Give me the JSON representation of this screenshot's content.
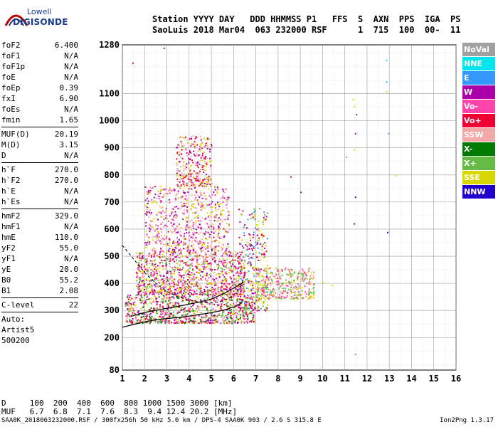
{
  "logo": {
    "line1": "Lowell",
    "line2": "DIGISONDE"
  },
  "header": {
    "line1": "Station YYYY DAY   DDD HHMMSS P1   FFS  S  AXN  PPS  IGA  PS",
    "line2": "SaoLuis 2018 Mar04  063 232000 RSF      1  715  100  00-  11"
  },
  "params": {
    "group1": [
      {
        "label": "foF2",
        "value": "6.400"
      },
      {
        "label": "foF1",
        "value": "N/A"
      },
      {
        "label": "foF1p",
        "value": "N/A"
      },
      {
        "label": "foE",
        "value": "N/A"
      },
      {
        "label": "foEp",
        "value": "0.39"
      },
      {
        "label": "fxI",
        "value": "6.90"
      },
      {
        "label": "foEs",
        "value": "N/A"
      },
      {
        "label": "fmin",
        "value": "1.65"
      }
    ],
    "group2": [
      {
        "label": "MUF(D)",
        "value": "20.19"
      },
      {
        "label": "M(D)",
        "value": "3.15"
      },
      {
        "label": "D",
        "value": "N/A"
      }
    ],
    "group3": [
      {
        "label": "h`F",
        "value": "270.0"
      },
      {
        "label": "h`F2",
        "value": "270.0"
      },
      {
        "label": "h`E",
        "value": "N/A"
      },
      {
        "label": "h`Es",
        "value": "N/A"
      }
    ],
    "group4": [
      {
        "label": "hmF2",
        "value": "329.0"
      },
      {
        "label": "hmF1",
        "value": "N/A"
      },
      {
        "label": "hmE",
        "value": "110.0"
      },
      {
        "label": "yF2",
        "value": "55.0"
      },
      {
        "label": "yF1",
        "value": "N/A"
      },
      {
        "label": "yE",
        "value": "20.0"
      },
      {
        "label": "B0",
        "value": "55.2"
      },
      {
        "label": "B1",
        "value": "2.08"
      }
    ],
    "group5": [
      {
        "label": "C-level",
        "value": "22"
      }
    ],
    "notes": [
      "Auto:",
      "Artist5",
      "500200"
    ]
  },
  "legend": [
    {
      "label": "NoVal",
      "color": "#a0a0a0"
    },
    {
      "label": "NNE",
      "color": "#00e5ee"
    },
    {
      "label": "E",
      "color": "#3399ff"
    },
    {
      "label": "W",
      "color": "#aa00aa"
    },
    {
      "label": "Vo-",
      "color": "#ff44aa"
    },
    {
      "label": "Vo+",
      "color": "#ee0033"
    },
    {
      "label": "SSW",
      "color": "#f4a8a8"
    },
    {
      "label": "X-",
      "color": "#007a00"
    },
    {
      "label": "X+",
      "color": "#66bb44"
    },
    {
      "label": "SSE",
      "color": "#d8d800"
    },
    {
      "label": "NNW",
      "color": "#2200cc"
    }
  ],
  "footer": {
    "d_row": "D     100  200  400  600  800 1000 1500 3000 [km]",
    "muf_row": "MUF   6.7  6.8  7.1  7.6  8.3  9.4 12.4 20.2 [MHz]",
    "filename": "SAA0K_2018063232000.RSF / 300fx256h 50 kHz 5.0 km / DPS-4 SAA0K 903 / 2.6 S 315.8 E",
    "version": "Ion2Png 1.3.17"
  },
  "chart_data": {
    "type": "scatter",
    "x_ticks": [
      1,
      2,
      3,
      4,
      5,
      6,
      7,
      8,
      9,
      10,
      11,
      12,
      13,
      14,
      15,
      16
    ],
    "y_ticks": [
      80,
      200,
      300,
      400,
      500,
      600,
      700,
      800,
      900,
      1000,
      1100,
      1280
    ],
    "xlim": [
      1,
      16
    ],
    "ylim": [
      80,
      1280
    ],
    "grid": true,
    "legend_position": "right",
    "clusters": [
      {
        "x": [
          1.1,
          6.9
        ],
        "y": [
          255,
          360
        ],
        "n": 900,
        "colors": [
          "#ee0033",
          "#ff44aa",
          "#aa00aa",
          "#66bb44",
          "#007a00",
          "#d8d800",
          "#f4a8a8"
        ]
      },
      {
        "x": [
          1.6,
          6.5
        ],
        "y": [
          360,
          520
        ],
        "n": 1100,
        "colors": [
          "#aa00aa",
          "#ff44aa",
          "#d8d800",
          "#66bb44",
          "#f4a8a8",
          "#ee0033"
        ]
      },
      {
        "x": [
          2.0,
          5.8
        ],
        "y": [
          520,
          760
        ],
        "n": 650,
        "colors": [
          "#aa00aa",
          "#f4a8a8",
          "#d8d800",
          "#ff44aa"
        ]
      },
      {
        "x": [
          3.4,
          5.0
        ],
        "y": [
          760,
          950
        ],
        "n": 300,
        "colors": [
          "#aa00aa",
          "#f4a8a8",
          "#d8d800",
          "#ee0033"
        ]
      },
      {
        "x": [
          6.2,
          7.5
        ],
        "y": [
          300,
          680
        ],
        "n": 300,
        "colors": [
          "#aa00aa",
          "#3399ff",
          "#d8d800",
          "#66bb44",
          "#ee0033"
        ]
      },
      {
        "x": [
          7.0,
          9.6
        ],
        "y": [
          345,
          460
        ],
        "n": 350,
        "colors": [
          "#d8d800",
          "#66bb44",
          "#f4a8a8",
          "#ff44aa"
        ]
      }
    ],
    "points": [
      {
        "x": 1.45,
        "y": 1215,
        "color": "#ee0033"
      },
      {
        "x": 2.85,
        "y": 1270,
        "color": "#aa00aa"
      },
      {
        "x": 11.05,
        "y": 868,
        "color": "#66bb44"
      },
      {
        "x": 11.35,
        "y": 1080,
        "color": "#d8d800"
      },
      {
        "x": 11.4,
        "y": 1055,
        "color": "#d8d800"
      },
      {
        "x": 11.5,
        "y": 1025,
        "color": "#007a00"
      },
      {
        "x": 11.45,
        "y": 955,
        "color": "#aa00aa"
      },
      {
        "x": 11.4,
        "y": 895,
        "color": "#d8d800"
      },
      {
        "x": 11.45,
        "y": 720,
        "color": "#2200cc"
      },
      {
        "x": 11.4,
        "y": 622,
        "color": "#aa00aa"
      },
      {
        "x": 11.45,
        "y": 140,
        "color": "#3399ff"
      },
      {
        "x": 12.85,
        "y": 1225,
        "color": "#00e5ee"
      },
      {
        "x": 12.85,
        "y": 1145,
        "color": "#3399ff"
      },
      {
        "x": 12.85,
        "y": 1110,
        "color": "#d8d800"
      },
      {
        "x": 12.95,
        "y": 955,
        "color": "#3399ff"
      },
      {
        "x": 12.9,
        "y": 590,
        "color": "#2200cc"
      },
      {
        "x": 13.25,
        "y": 800,
        "color": "#d8d800"
      },
      {
        "x": 8.55,
        "y": 795,
        "color": "#aa00aa"
      },
      {
        "x": 9.0,
        "y": 738,
        "color": "#aa00aa"
      },
      {
        "x": 10.0,
        "y": 405,
        "color": "#d8d800"
      },
      {
        "x": 10.4,
        "y": 395,
        "color": "#d8d800"
      }
    ],
    "trace_solid": {
      "x": [
        1.0,
        1.5,
        2.0,
        2.5,
        3.0,
        3.5,
        4.0,
        4.5,
        5.0,
        5.5,
        6.0,
        6.3,
        6.45
      ],
      "y": [
        238,
        248,
        258,
        265,
        270,
        274,
        279,
        285,
        292,
        300,
        312,
        325,
        340
      ]
    },
    "trace_dashed": {
      "x": [
        1.0,
        1.3,
        1.6,
        2.0,
        2.5,
        3.0,
        3.5,
        4.0,
        4.5,
        5.0,
        5.4,
        5.8,
        6.1,
        6.3,
        6.4,
        6.45
      ],
      "y": [
        540,
        510,
        480,
        440,
        400,
        370,
        350,
        338,
        330,
        328,
        332,
        345,
        365,
        385,
        405,
        420
      ]
    },
    "trace_upper": {
      "x": [
        1.4,
        1.6,
        1.9,
        2.3,
        2.8,
        3.3,
        3.8,
        4.4,
        5.0,
        5.5,
        5.9,
        6.2,
        6.35,
        6.45
      ],
      "y": [
        278,
        284,
        290,
        298,
        305,
        312,
        320,
        330,
        342,
        360,
        378,
        392,
        400,
        405
      ]
    }
  }
}
